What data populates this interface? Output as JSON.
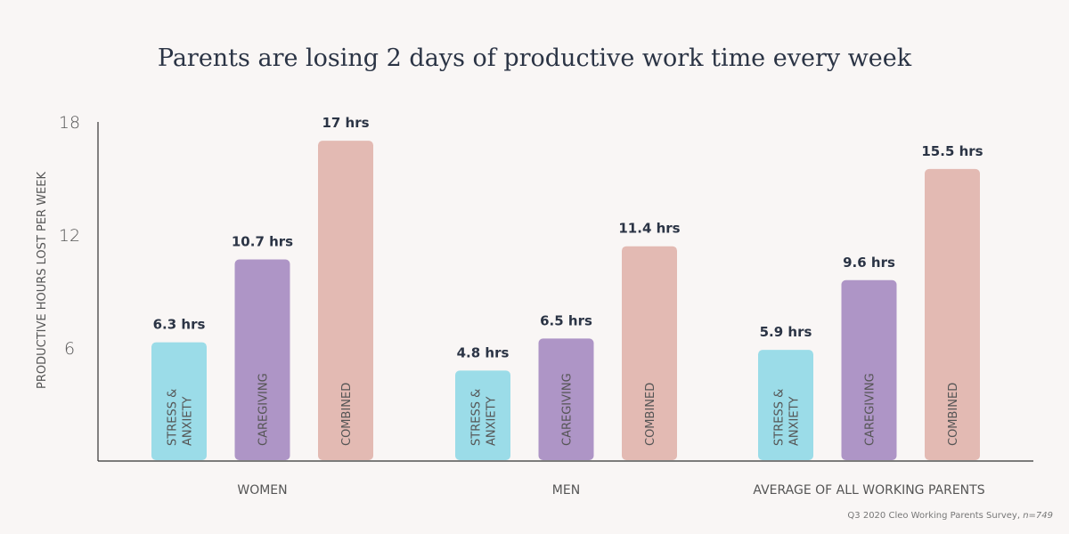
{
  "chart_data": {
    "type": "bar",
    "title": "Parents are losing 2 days of productive work time every week",
    "ylabel": "PRODUCTIVE HOURS LOST PER WEEK",
    "xlabel": "",
    "ylim": [
      0,
      18
    ],
    "yticks": [
      "6",
      "12",
      "18"
    ],
    "grid": false,
    "categories": [
      "WOMEN",
      "MEN",
      "AVERAGE OF ALL WORKING PARENTS"
    ],
    "series": [
      {
        "name": "STRESS & ANXIETY",
        "lines": [
          "STRESS &",
          "ANXIETY"
        ],
        "color": "#9bdce8",
        "values": [
          6.3,
          4.8,
          5.9
        ],
        "labels": [
          "6.3 hrs",
          "4.8 hrs",
          "5.9 hrs"
        ]
      },
      {
        "name": "CAREGIVING",
        "lines": [
          "CAREGIVING"
        ],
        "color": "#ae95c6",
        "values": [
          10.7,
          6.5,
          9.6
        ],
        "labels": [
          "10.7 hrs",
          "6.5 hrs",
          "9.6 hrs"
        ]
      },
      {
        "name": "COMBINED",
        "lines": [
          "COMBINED"
        ],
        "color": "#e3bab3",
        "values": [
          17,
          11.4,
          15.5
        ],
        "labels": [
          "17 hrs",
          "11.4 hrs",
          "15.5 hrs"
        ]
      }
    ],
    "source": "Q3 2020 Cleo Working Parents Survey, ",
    "source_n": "n=749"
  }
}
